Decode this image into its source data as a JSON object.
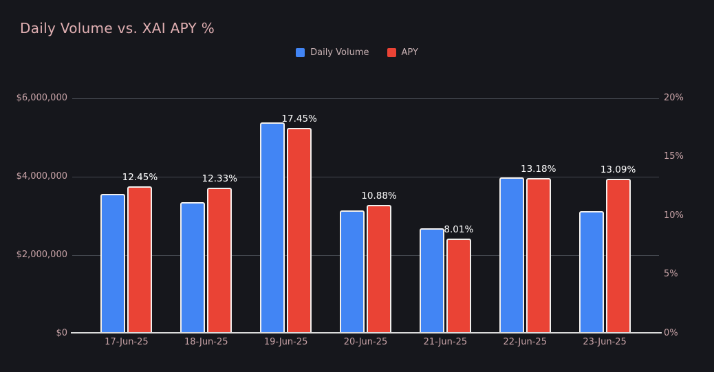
{
  "title": "Daily Volume vs. XAI APY %",
  "legend": [
    {
      "label": "Daily Volume",
      "color": "#4285f4",
      "icon": "square-swatch-icon"
    },
    {
      "label": "APY",
      "color": "#ea4335",
      "icon": "square-swatch-icon"
    }
  ],
  "colors": {
    "background": "#16171c",
    "title": "#e0afb2",
    "axis_label": "#c8a3a7",
    "legend_text": "#c9b2b4",
    "gridline": "#464a51",
    "baseline": "#dcdcdc",
    "volume_bar": "#4285f4",
    "apy_bar": "#ea4335",
    "bar_border": "#f1efed",
    "value_label": "#ffffff"
  },
  "chart_data": {
    "type": "bar",
    "title": "Daily Volume vs. XAI APY %",
    "categories": [
      "17-Jun-25",
      "18-Jun-25",
      "19-Jun-25",
      "20-Jun-25",
      "21-Jun-25",
      "22-Jun-25",
      "23-Jun-25"
    ],
    "series": [
      {
        "name": "Daily Volume",
        "axis": "left",
        "color": "#4285f4",
        "values": [
          3550000,
          3330000,
          5370000,
          3120000,
          2670000,
          3970000,
          3110000
        ]
      },
      {
        "name": "APY",
        "axis": "right",
        "color": "#ea4335",
        "values": [
          12.45,
          12.33,
          17.45,
          10.88,
          8.01,
          13.18,
          13.09
        ],
        "labels": [
          "12.45%",
          "12.33%",
          "17.45%",
          "10.88%",
          "8.01%",
          "13.18%",
          "13.09%"
        ]
      }
    ],
    "left_axis": {
      "min": 0,
      "max": 6000000,
      "ticks": [
        "$6,000,000",
        "$4,000,000",
        "$2,000,000",
        "$0"
      ]
    },
    "right_axis": {
      "min": 0,
      "max": 20,
      "ticks": [
        "20%",
        "15%",
        "10%",
        "5%",
        "0%"
      ]
    },
    "grid": "horizontal",
    "legend_position": "top-center"
  }
}
